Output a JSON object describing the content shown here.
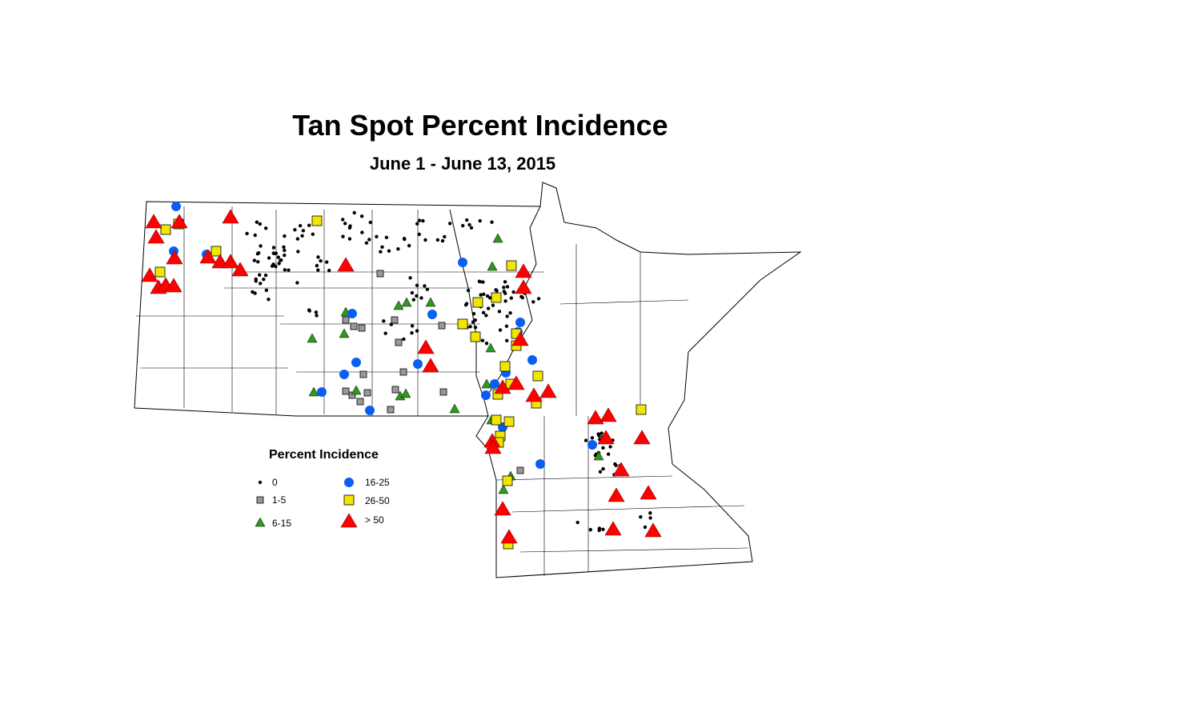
{
  "title": "Tan Spot Percent Incidence",
  "subtitle": "June 1 - June 13, 2015",
  "legend": {
    "title": "Percent Incidence",
    "items": [
      {
        "label": "0",
        "symbol": "small-dot",
        "color": "#000000"
      },
      {
        "label": "1-5",
        "symbol": "square",
        "color": "#999999"
      },
      {
        "label": "6-15",
        "symbol": "triangle",
        "color": "#2e9a1c"
      },
      {
        "label": "16-25",
        "symbol": "circle",
        "color": "#0a5ff0"
      },
      {
        "label": "26-50",
        "symbol": "square",
        "color": "#f0e600"
      },
      {
        "label": "> 50",
        "symbol": "triangle",
        "color": "#ff0000"
      }
    ]
  }
}
